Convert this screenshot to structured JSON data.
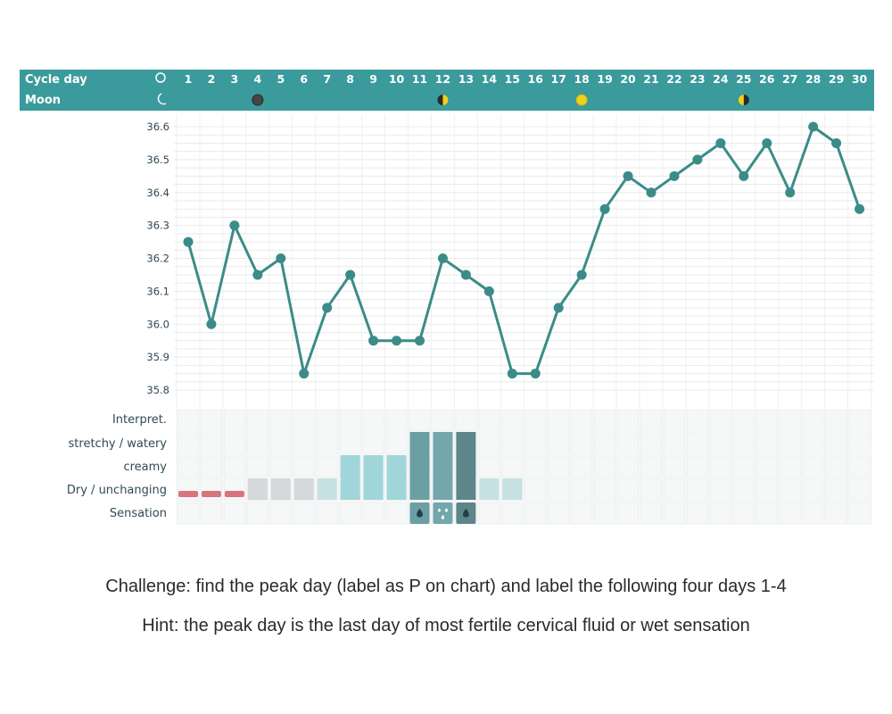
{
  "header": {
    "cycle_day_label": "Cycle day",
    "moon_label": "Moon",
    "cycle_icon": "circle-icon",
    "moon_icon": "crescent-moon-icon"
  },
  "moon_phases": [
    {
      "day": 4,
      "phase": "new-moon",
      "icon": "new-moon-icon"
    },
    {
      "day": 12,
      "phase": "first-quarter",
      "icon": "half-moon-icon"
    },
    {
      "day": 18,
      "phase": "full-moon",
      "icon": "full-moon-icon"
    },
    {
      "day": 25,
      "phase": "last-quarter",
      "icon": "half-moon-icon"
    }
  ],
  "rows": {
    "interpret": "Interpret.",
    "stretchy": "stretchy / watery",
    "creamy": "creamy",
    "dry": "Dry / unchanging",
    "sensation": "Sensation"
  },
  "fluid": [
    {
      "day": 1,
      "level": "menstruation"
    },
    {
      "day": 2,
      "level": "menstruation"
    },
    {
      "day": 3,
      "level": "menstruation"
    },
    {
      "day": 4,
      "level": "dry"
    },
    {
      "day": 5,
      "level": "dry"
    },
    {
      "day": 6,
      "level": "dry"
    },
    {
      "day": 7,
      "level": "dry"
    },
    {
      "day": 8,
      "level": "creamy"
    },
    {
      "day": 9,
      "level": "creamy"
    },
    {
      "day": 10,
      "level": "creamy"
    },
    {
      "day": 11,
      "level": "stretchy"
    },
    {
      "day": 12,
      "level": "stretchy"
    },
    {
      "day": 13,
      "level": "stretchy"
    },
    {
      "day": 14,
      "level": "dry"
    },
    {
      "day": 15,
      "level": "dry"
    }
  ],
  "sensation": [
    {
      "day": 11,
      "icon": "drop-icon"
    },
    {
      "day": 12,
      "icon": "drops-icon"
    },
    {
      "day": 13,
      "icon": "drop-icon"
    }
  ],
  "colors": {
    "header_bg": "#3b9a9b",
    "line": "#3b8c88",
    "menstruation": "#d9747c",
    "dry_early": "#d5d9dc",
    "dry_late": "#c6e1e2",
    "creamy": "#a0d6da",
    "stretchy_11": "#6b9fa3",
    "stretchy_12": "#72a7ab",
    "stretchy_13": "#5e8589",
    "full_moon": "#ecd21a",
    "label_text": "#2e4a58"
  },
  "chart_data": {
    "type": "line",
    "xlabel": "Cycle day",
    "ylabel": "",
    "x": [
      1,
      2,
      3,
      4,
      5,
      6,
      7,
      8,
      9,
      10,
      11,
      12,
      13,
      14,
      15,
      16,
      17,
      18,
      19,
      20,
      21,
      22,
      23,
      24,
      25,
      26,
      27,
      28,
      29,
      30
    ],
    "series": [
      {
        "values": [
          36.25,
          36.0,
          36.3,
          36.15,
          36.2,
          35.85,
          36.05,
          36.15,
          35.95,
          35.95,
          35.95,
          36.2,
          36.15,
          36.1,
          35.85,
          35.85,
          36.05,
          36.15,
          36.35,
          36.45,
          36.4,
          36.45,
          36.5,
          36.55,
          36.45,
          36.55,
          36.4,
          36.6,
          36.55,
          36.35
        ]
      }
    ],
    "yticks": [
      "36.6",
      "36.5",
      "36.4",
      "36.3",
      "36.2",
      "36.1",
      "36.0",
      "35.9",
      "35.8"
    ],
    "ylim": [
      35.8,
      36.6
    ]
  },
  "captions": {
    "challenge": "Challenge: find the peak day (label as P on chart) and label the following four days 1-4",
    "hint": "Hint: the peak day is the last day of most fertile cervical fluid or wet sensation"
  }
}
